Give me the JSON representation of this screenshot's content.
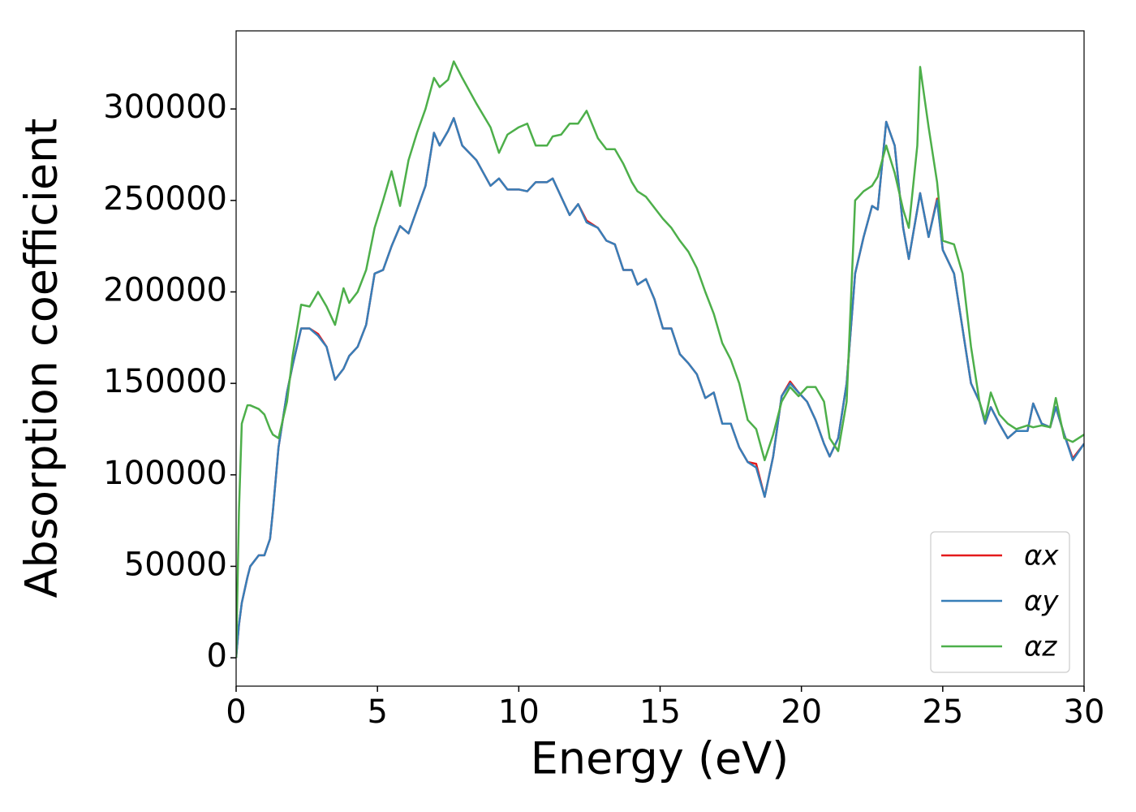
{
  "chart_data": {
    "type": "line",
    "xlabel": "Energy (eV)",
    "ylabel": "Absorption coefficient",
    "x": [
      0,
      0.1,
      0.2,
      0.4,
      0.5,
      0.8,
      1.0,
      1.2,
      1.3,
      1.5,
      1.8,
      2.0,
      2.3,
      2.6,
      2.9,
      3.2,
      3.5,
      3.8,
      4.0,
      4.3,
      4.6,
      4.9,
      5.2,
      5.5,
      5.8,
      6.1,
      6.4,
      6.7,
      7.0,
      7.2,
      7.5,
      7.7,
      8.0,
      8.5,
      9.0,
      9.3,
      9.6,
      10.0,
      10.3,
      10.6,
      11.0,
      11.2,
      11.5,
      11.8,
      12.1,
      12.4,
      12.8,
      13.1,
      13.4,
      13.7,
      14.0,
      14.2,
      14.5,
      14.8,
      15.1,
      15.4,
      15.7,
      16.0,
      16.3,
      16.6,
      16.9,
      17.2,
      17.5,
      17.8,
      18.1,
      18.4,
      18.7,
      19.0,
      19.3,
      19.6,
      19.9,
      20.2,
      20.5,
      20.8,
      21.0,
      21.3,
      21.6,
      21.9,
      22.2,
      22.5,
      22.7,
      23.0,
      23.3,
      23.6,
      23.8,
      24.1,
      24.2,
      24.5,
      24.8,
      25.0,
      25.4,
      25.7,
      26.0,
      26.3,
      26.5,
      26.7,
      27.0,
      27.3,
      27.6,
      28.0,
      28.2,
      28.5,
      28.8,
      29.0,
      29.3,
      29.6,
      30.0
    ],
    "series": [
      {
        "name": "αx",
        "color": "#e41a1c",
        "values": [
          0,
          18000,
          30000,
          44000,
          50000,
          56000,
          56000,
          65000,
          80000,
          115000,
          145000,
          160000,
          180000,
          180000,
          177000,
          170000,
          152000,
          158000,
          165000,
          170000,
          182000,
          210000,
          212000,
          225000,
          236000,
          232000,
          245000,
          258000,
          287000,
          280000,
          288000,
          295000,
          280000,
          272000,
          258000,
          262000,
          256000,
          256000,
          255000,
          260000,
          260000,
          262000,
          252000,
          242000,
          248000,
          239000,
          235000,
          228000,
          226000,
          212000,
          212000,
          204000,
          207000,
          196000,
          180000,
          180000,
          166000,
          161000,
          155000,
          142000,
          145000,
          128000,
          128000,
          115000,
          107000,
          106000,
          88000,
          110000,
          143000,
          151000,
          145000,
          140000,
          130000,
          117000,
          110000,
          120000,
          150000,
          210000,
          230000,
          247000,
          245000,
          293000,
          280000,
          235000,
          218000,
          245000,
          254000,
          230000,
          251000,
          223000,
          210000,
          180000,
          150000,
          140000,
          128000,
          137000,
          128000,
          120000,
          124000,
          124000,
          139000,
          128000,
          126000,
          137000,
          122000,
          109000,
          117000
        ]
      },
      {
        "name": "αy",
        "color": "#377eb8",
        "values": [
          0,
          18000,
          30000,
          44000,
          50000,
          56000,
          56000,
          65000,
          80000,
          115000,
          145000,
          160000,
          180000,
          180000,
          176000,
          170000,
          152000,
          158000,
          165000,
          170000,
          182000,
          210000,
          212000,
          225000,
          236000,
          232000,
          245000,
          258000,
          287000,
          280000,
          288000,
          295000,
          280000,
          272000,
          258000,
          262000,
          256000,
          256000,
          255000,
          260000,
          260000,
          262000,
          252000,
          242000,
          248000,
          238000,
          235000,
          228000,
          226000,
          212000,
          212000,
          204000,
          207000,
          196000,
          180000,
          180000,
          166000,
          161000,
          155000,
          142000,
          145000,
          128000,
          128000,
          115000,
          107000,
          104000,
          88000,
          110000,
          143000,
          150000,
          145000,
          140000,
          130000,
          117000,
          110000,
          120000,
          150000,
          210000,
          230000,
          247000,
          245000,
          293000,
          280000,
          235000,
          218000,
          245000,
          254000,
          230000,
          250000,
          223000,
          210000,
          180000,
          150000,
          140000,
          128000,
          137000,
          128000,
          120000,
          124000,
          124000,
          139000,
          128000,
          126000,
          137000,
          122000,
          108000,
          117000
        ]
      },
      {
        "name": "αz",
        "color": "#4daf4a",
        "values": [
          0,
          80000,
          128000,
          138000,
          138000,
          136000,
          133000,
          125000,
          122000,
          120000,
          140000,
          165000,
          193000,
          192000,
          200000,
          192000,
          182000,
          202000,
          194000,
          200000,
          212000,
          235000,
          250000,
          266000,
          247000,
          272000,
          287000,
          300000,
          317000,
          312000,
          316000,
          326000,
          317000,
          303000,
          290000,
          276000,
          286000,
          290000,
          292000,
          280000,
          280000,
          285000,
          286000,
          292000,
          292000,
          299000,
          284000,
          278000,
          278000,
          270000,
          260000,
          255000,
          252000,
          246000,
          240000,
          235000,
          228000,
          222000,
          213000,
          200000,
          188000,
          172000,
          163000,
          150000,
          130000,
          125000,
          108000,
          122000,
          140000,
          148000,
          143000,
          148000,
          148000,
          140000,
          120000,
          113000,
          140000,
          250000,
          255000,
          258000,
          263000,
          280000,
          265000,
          245000,
          235000,
          280000,
          323000,
          290000,
          260000,
          228000,
          226000,
          210000,
          170000,
          140000,
          130000,
          145000,
          133000,
          128000,
          125000,
          127000,
          126000,
          127000,
          126000,
          142000,
          120000,
          118000,
          122000
        ]
      }
    ],
    "xlim": [
      0,
      30
    ],
    "xticks": [
      0,
      5,
      10,
      15,
      20,
      25,
      30
    ],
    "ylim": [
      -15500,
      342700
    ],
    "yticks": [
      0,
      50000,
      100000,
      150000,
      200000,
      250000,
      300000
    ],
    "grid": false,
    "legend": "lower right"
  }
}
